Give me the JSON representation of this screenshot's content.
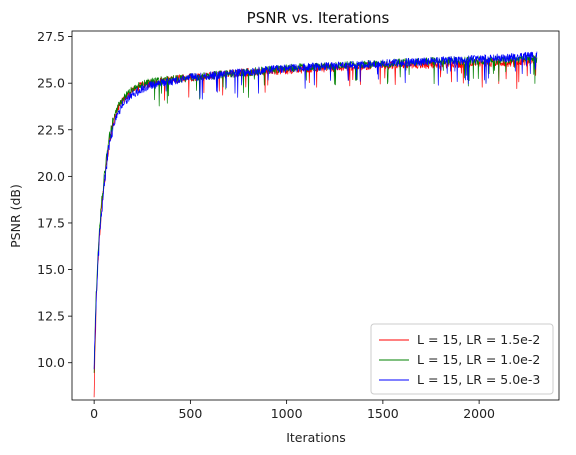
{
  "chart_data": {
    "type": "line",
    "title": "PSNR vs. Iterations",
    "xlabel": "Iterations",
    "ylabel": "PSNR (dB)",
    "xlim": [
      -115,
      2415
    ],
    "ylim": [
      8.0,
      27.8
    ],
    "xticks": [
      0,
      500,
      1000,
      1500,
      2000
    ],
    "xtick_labels": [
      "0",
      "500",
      "1000",
      "1500",
      "2000"
    ],
    "yticks": [
      10.0,
      12.5,
      15.0,
      17.5,
      20.0,
      22.5,
      25.0,
      27.5
    ],
    "ytick_labels": [
      "10.0",
      "12.5",
      "15.0",
      "17.5",
      "20.0",
      "22.5",
      "25.0",
      "27.5"
    ],
    "grid": false,
    "legend_position": "lower-right",
    "series": [
      {
        "name": "L = 15, LR = 1.5e-2",
        "color": "#ff0000",
        "x": [
          0,
          10,
          25,
          50,
          75,
          100,
          125,
          150,
          200,
          250,
          300,
          400,
          500,
          600,
          700,
          800,
          1000,
          1200,
          1400,
          1600,
          1800,
          2000,
          2200,
          2300
        ],
        "values": [
          8.5,
          13.0,
          16.5,
          19.5,
          21.6,
          22.9,
          23.7,
          24.1,
          24.6,
          24.9,
          25.0,
          25.2,
          25.3,
          25.4,
          25.5,
          25.6,
          25.7,
          25.8,
          25.9,
          26.0,
          26.0,
          26.1,
          26.1,
          26.2
        ]
      },
      {
        "name": "L = 15, LR = 1.0e-2",
        "color": "#008000",
        "x": [
          0,
          10,
          25,
          50,
          75,
          100,
          125,
          150,
          200,
          250,
          300,
          400,
          500,
          600,
          700,
          800,
          1000,
          1200,
          1400,
          1600,
          1800,
          2000,
          2200,
          2300
        ],
        "values": [
          9.8,
          13.5,
          16.8,
          19.8,
          21.9,
          23.1,
          23.8,
          24.2,
          24.7,
          24.9,
          25.1,
          25.2,
          25.3,
          25.4,
          25.5,
          25.6,
          25.8,
          25.9,
          26.0,
          26.1,
          26.2,
          26.2,
          26.3,
          26.3
        ]
      },
      {
        "name": "L = 15, LR = 5.0e-3",
        "color": "#0000ff",
        "x": [
          0,
          10,
          25,
          50,
          75,
          100,
          125,
          150,
          200,
          250,
          300,
          400,
          500,
          600,
          700,
          800,
          1000,
          1200,
          1400,
          1600,
          1800,
          2000,
          2200,
          2300
        ],
        "values": [
          10.0,
          13.2,
          16.3,
          19.4,
          21.5,
          22.7,
          23.4,
          23.9,
          24.4,
          24.7,
          24.9,
          25.1,
          25.3,
          25.4,
          25.5,
          25.6,
          25.8,
          25.9,
          26.0,
          26.1,
          26.2,
          26.3,
          26.4,
          26.5
        ]
      }
    ]
  }
}
